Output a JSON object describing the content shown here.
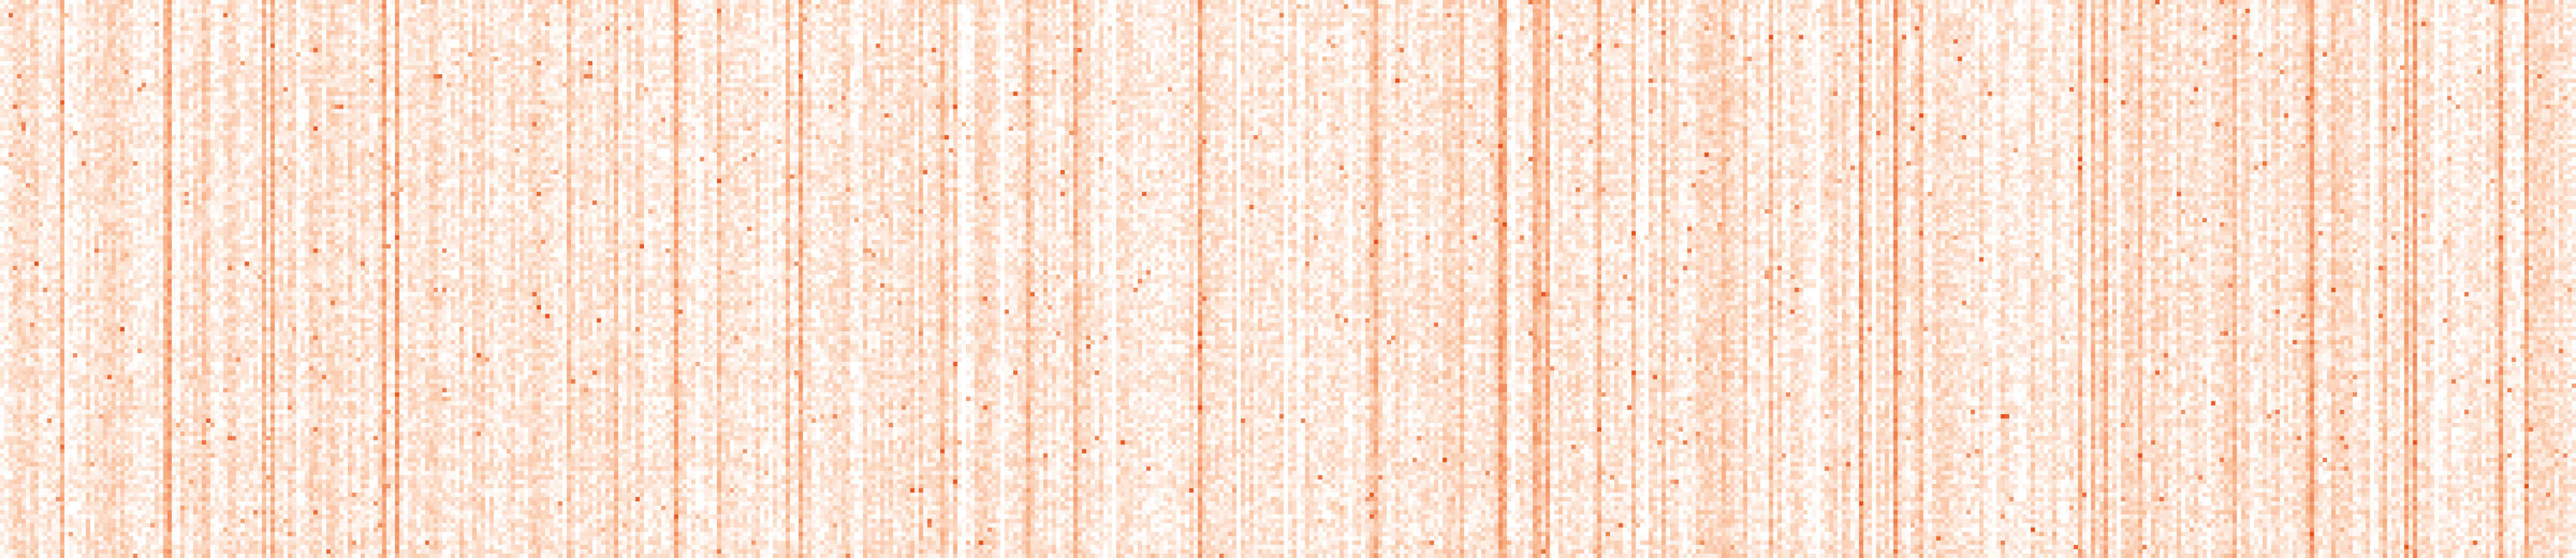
{
  "chart_data": {
    "type": "heatmap",
    "title": "",
    "xlabel": "",
    "ylabel": "",
    "grid": false,
    "legend": "none",
    "axes_visible": false,
    "n_rows": 128,
    "n_cols": 600,
    "value_range": [
      0,
      1
    ],
    "colormap": {
      "name": "oranges",
      "low": "#ffffff",
      "mid": "#f9b48a",
      "high": "#e8501a"
    },
    "pattern": {
      "generator": "procedural-noise",
      "seed": 20240611,
      "base_mean": 0.17,
      "column_variation": 0.22,
      "cell_noise": 0.16,
      "hot_column_fraction": 0.07,
      "cold_column_fraction": 0.05,
      "speckle_fraction": 0.008
    }
  }
}
